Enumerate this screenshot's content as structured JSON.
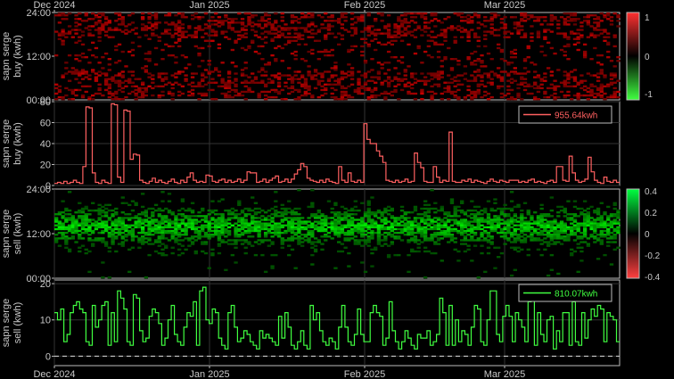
{
  "chart_data": [
    {
      "type": "heatmap",
      "ylabel": [
        "sapn serge",
        "buy (kwh)"
      ],
      "x_ticks": [
        "Dec 2024",
        "Jan 2025",
        "Feb 2025",
        "Mar 2025"
      ],
      "y_ticks": [
        "00:00",
        "12:00",
        "24:00"
      ],
      "ylim": [
        0,
        24
      ],
      "colorbar": {
        "ticks": [
          "1",
          "0",
          "-1"
        ],
        "range": [
          -1,
          1
        ],
        "colors": [
          "#ff0000",
          "#000000",
          "#00ff00"
        ]
      },
      "color": "#ff2020"
    },
    {
      "type": "line",
      "ylabel": [
        "sapn serge",
        "buy (kwh)"
      ],
      "y_ticks": [
        "0",
        "20",
        "40",
        "60",
        "80"
      ],
      "ylim": [
        0,
        80
      ],
      "legend": "955.64kwh",
      "legend_position": "top-right",
      "color": "#ff6060",
      "x_start": "2024-12-01",
      "values": [
        2,
        3,
        2,
        4,
        2,
        3,
        5,
        3,
        2,
        18,
        75,
        74,
        12,
        3,
        2,
        5,
        3,
        2,
        78,
        77,
        8,
        3,
        72,
        71,
        25,
        30,
        29,
        5,
        3,
        2,
        4,
        7,
        3,
        5,
        3,
        2,
        4,
        6,
        3,
        2,
        5,
        3,
        8,
        12,
        5,
        3,
        4,
        3,
        10,
        9,
        4,
        3,
        5,
        6,
        3,
        5,
        3,
        4,
        6,
        3,
        5,
        13,
        12,
        12,
        3,
        4,
        6,
        3,
        5,
        7,
        9,
        3,
        4,
        6,
        3,
        6,
        11,
        15,
        21,
        18,
        7,
        5,
        4,
        3,
        5,
        3,
        6,
        4,
        3,
        2,
        18,
        5,
        3,
        12,
        4,
        3,
        5,
        3,
        59,
        44,
        40,
        40,
        33,
        28,
        22,
        5,
        4,
        3,
        5,
        3,
        4,
        6,
        3,
        4,
        31,
        22,
        17,
        4,
        3,
        3,
        18,
        8,
        3,
        5,
        4,
        51,
        4,
        3,
        3,
        5,
        4,
        6,
        3,
        5,
        4,
        3,
        2,
        4,
        6,
        4,
        3,
        5,
        4,
        3,
        5,
        5,
        5,
        3,
        4,
        3,
        5,
        6,
        3,
        4,
        3,
        2,
        4,
        5,
        3,
        18,
        18,
        5,
        4,
        28,
        12,
        5,
        3,
        4,
        6,
        27,
        13,
        5,
        3,
        2,
        8,
        4,
        3,
        5,
        3
      ]
    },
    {
      "type": "heatmap",
      "ylabel": [
        "sapn serge",
        "sell (kwh)"
      ],
      "y_ticks": [
        "00:00",
        "12:00",
        "24:00"
      ],
      "ylim": [
        0,
        24
      ],
      "colorbar": {
        "ticks": [
          "0.4",
          "0.2",
          "0",
          "-0.2",
          "-0.4"
        ],
        "range": [
          -0.4,
          0.4
        ],
        "colors": [
          "#ff0000",
          "#000000",
          "#00ff00"
        ]
      },
      "color": "#20ff20"
    },
    {
      "type": "line",
      "ylabel": [
        "sapn serge",
        "sell (kwh)"
      ],
      "x_ticks": [
        "Dec 2024",
        "Jan 2025",
        "Feb 2025",
        "Mar 2025"
      ],
      "y_ticks": [
        "0",
        "10",
        "20"
      ],
      "ylim": [
        -2.6,
        21
      ],
      "legend": "810.07kwh",
      "legend_position": "top-right",
      "color": "#40ff40",
      "x_start": "2024-12-01",
      "values": [
        12,
        10,
        13,
        4,
        6,
        12,
        14,
        15,
        13,
        12,
        4,
        3,
        14,
        8,
        10,
        14,
        15,
        3,
        12,
        4,
        18,
        16,
        13,
        4,
        3,
        17,
        16,
        7,
        4,
        5,
        11,
        13,
        12,
        9,
        3,
        5,
        10,
        14,
        6,
        4,
        3,
        8,
        12,
        11,
        15,
        3,
        18,
        19,
        10,
        9,
        13,
        12,
        5,
        3,
        2,
        12,
        14,
        8,
        4,
        5,
        7,
        6,
        4,
        3,
        2,
        7,
        5,
        6,
        5,
        4,
        3,
        11,
        5,
        12,
        8,
        3,
        2,
        4,
        7,
        3,
        2,
        14,
        10,
        12,
        7,
        4,
        3,
        5,
        4,
        2,
        8,
        14,
        8,
        4,
        3,
        6,
        13,
        6,
        4,
        4,
        12,
        14,
        12,
        11,
        3,
        5,
        15,
        7,
        4,
        2,
        4,
        7,
        5,
        3,
        2,
        6,
        5,
        5,
        7,
        3,
        4,
        6,
        16,
        12,
        3,
        14,
        3,
        10,
        4,
        7,
        6,
        3,
        8,
        14,
        13,
        4,
        3,
        10,
        18,
        18,
        6,
        4,
        11,
        14,
        11,
        4,
        12,
        10,
        8,
        4,
        15,
        16,
        3,
        12,
        6,
        4,
        10,
        11,
        2,
        7,
        4,
        12,
        12,
        3,
        15,
        4,
        3,
        12,
        5,
        10,
        13,
        11,
        14,
        13,
        4,
        12,
        11,
        10,
        4
      ]
    }
  ]
}
